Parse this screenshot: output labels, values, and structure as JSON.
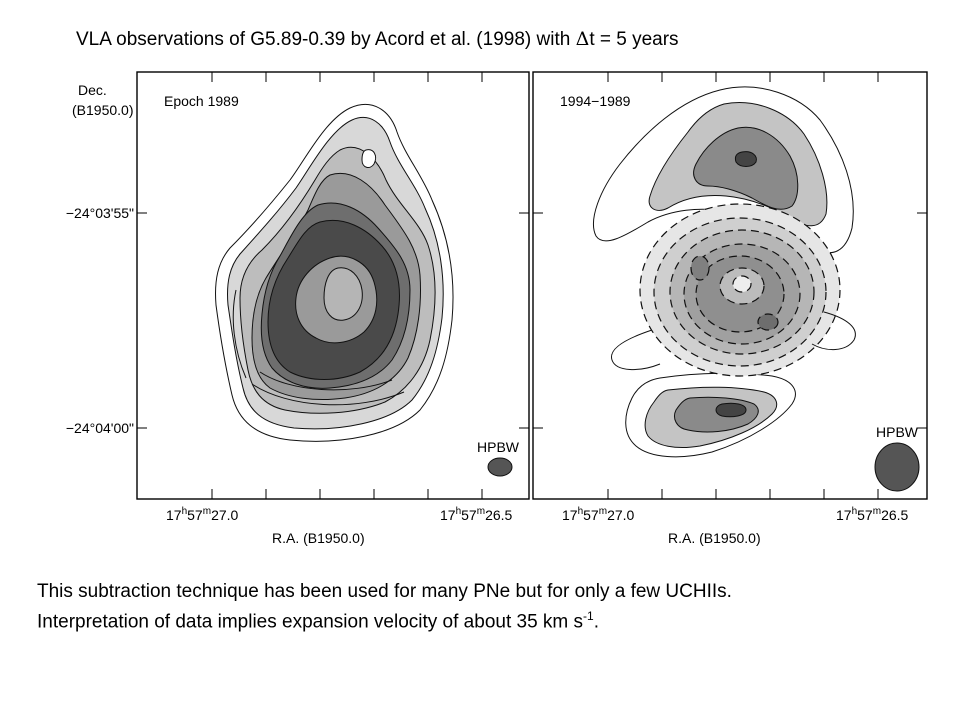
{
  "slide_title": {
    "prefix": "VLA observations of G5.89-0.39 by Acord et al. (1998) with ",
    "delta_symbol": "Δ",
    "suffix": "t = 5 years"
  },
  "figure": {
    "y_axis_label_line1": "Dec.",
    "y_axis_label_line2": "(B1950.0)",
    "y_ticks": [
      "−24°03'55\"",
      "−24°04'00\""
    ],
    "x_axis_label": "R.A.  (B1950.0)",
    "x_tick_left": {
      "main": "17",
      "h": "h",
      "mid": "57",
      "m": "m",
      "sec": "27.0",
      "s": "s"
    },
    "x_tick_right": {
      "main": "17",
      "h": "h",
      "mid": "57",
      "m": "m",
      "sec": "26.5",
      "s": "s"
    },
    "panel_left_label": "Epoch 1989",
    "panel_right_label": "1994−1989",
    "beam_label": "HPBW",
    "colors": {
      "dark": "#3a3a3a",
      "mid": "#777777",
      "light": "#b8b8b8",
      "contour": "#111111"
    }
  },
  "caption": {
    "line1": "This subtraction technique has been used for many PNe but for only a few UCHIIs.",
    "line2_prefix": "Interpretation of data implies expansion velocity of about 35 km s",
    "line2_sup": "-1",
    "line2_suffix": "."
  }
}
